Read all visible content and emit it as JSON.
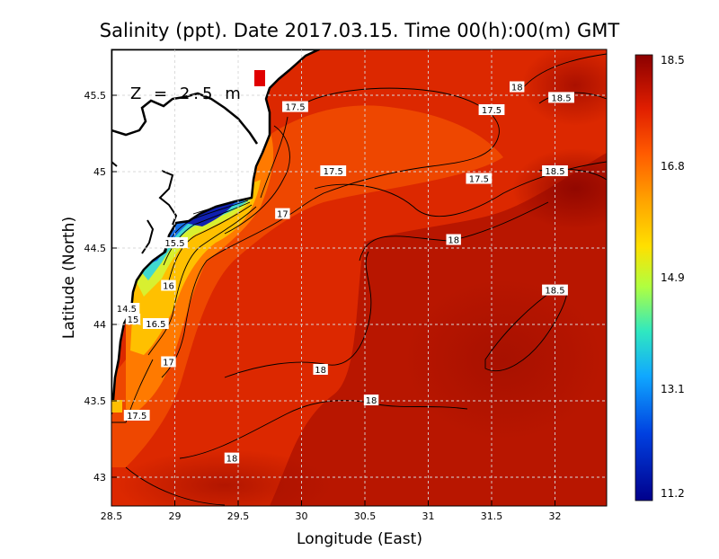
{
  "chart_data": {
    "type": "heatmap",
    "title": "Salinity (ppt). Date 2017.03.15. Time 00(h):00(m) GMT",
    "xlabel": "Longitude (East)",
    "ylabel": "Latitude (North)",
    "xlim": [
      28.5,
      32.4
    ],
    "ylim": [
      42.8,
      45.8
    ],
    "x_ticks": [
      "28.5",
      "29",
      "29.5",
      "30",
      "30.5",
      "31",
      "31.5",
      "32"
    ],
    "y_ticks": [
      "43",
      "43.5",
      "44",
      "44.5",
      "45",
      "45.5"
    ],
    "grid": true,
    "depth_annotation": "Z = 2.5 m",
    "colorbar": {
      "min": 11.2,
      "max": 18.5,
      "ticks": [
        "18.5",
        "16.8",
        "14.9",
        "13.1",
        "11.2"
      ],
      "colors": [
        "#8b0000",
        "#e01e00",
        "#ff5a00",
        "#ffa500",
        "#ffe000",
        "#b0ff40",
        "#30e8c0",
        "#10a8ff",
        "#0040e0",
        "#00008c"
      ]
    },
    "contour_labels": [
      {
        "text": "18",
        "lon": 31.7,
        "lat": 45.55
      },
      {
        "text": "18.5",
        "lon": 32.05,
        "lat": 45.48
      },
      {
        "text": "17.5",
        "lon": 29.95,
        "lat": 45.42
      },
      {
        "text": "17.5",
        "lon": 31.5,
        "lat": 45.4
      },
      {
        "text": "17.5",
        "lon": 30.25,
        "lat": 45.0
      },
      {
        "text": "17.5",
        "lon": 31.4,
        "lat": 44.95
      },
      {
        "text": "18.5",
        "lon": 32.0,
        "lat": 45.0
      },
      {
        "text": "17",
        "lon": 29.85,
        "lat": 44.72
      },
      {
        "text": "18",
        "lon": 31.2,
        "lat": 44.55
      },
      {
        "text": "15.5",
        "lon": 29.0,
        "lat": 44.53
      },
      {
        "text": "16",
        "lon": 28.95,
        "lat": 44.25
      },
      {
        "text": "18.5",
        "lon": 32.0,
        "lat": 44.22
      },
      {
        "text": "14.5",
        "lon": 28.62,
        "lat": 44.1
      },
      {
        "text": "15",
        "lon": 28.67,
        "lat": 44.03
      },
      {
        "text": "16.5",
        "lon": 28.85,
        "lat": 44.0
      },
      {
        "text": "17",
        "lon": 28.95,
        "lat": 43.75
      },
      {
        "text": "18",
        "lon": 30.15,
        "lat": 43.7
      },
      {
        "text": "18",
        "lon": 30.55,
        "lat": 43.5
      },
      {
        "text": "17.5",
        "lon": 28.7,
        "lat": 43.4
      },
      {
        "text": "18",
        "lon": 29.45,
        "lat": 43.12
      }
    ]
  }
}
